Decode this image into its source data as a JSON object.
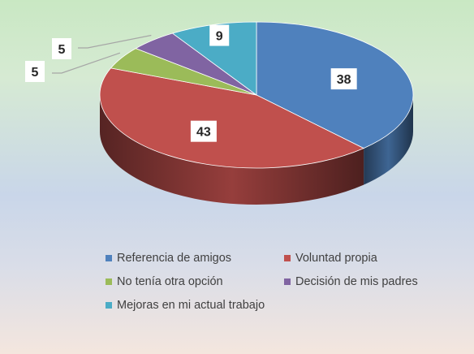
{
  "chart_data": {
    "type": "pie",
    "style": "3d",
    "slices": [
      {
        "label": "Referencia de amigos",
        "value": 38,
        "color": "#4f81bd"
      },
      {
        "label": "Voluntad propia",
        "value": 43,
        "color": "#c0504d"
      },
      {
        "label": "No tenía otra opción",
        "value": 5,
        "color": "#9bbb59"
      },
      {
        "label": "Decisión de mis padres",
        "value": 5,
        "color": "#8064a2"
      },
      {
        "label": "Mejoras en mi actual trabajo",
        "value": 9,
        "color": "#4bacc6"
      }
    ],
    "data_labels": [
      "38",
      "43",
      "5",
      "5",
      "9"
    ],
    "legend_position": "bottom"
  }
}
